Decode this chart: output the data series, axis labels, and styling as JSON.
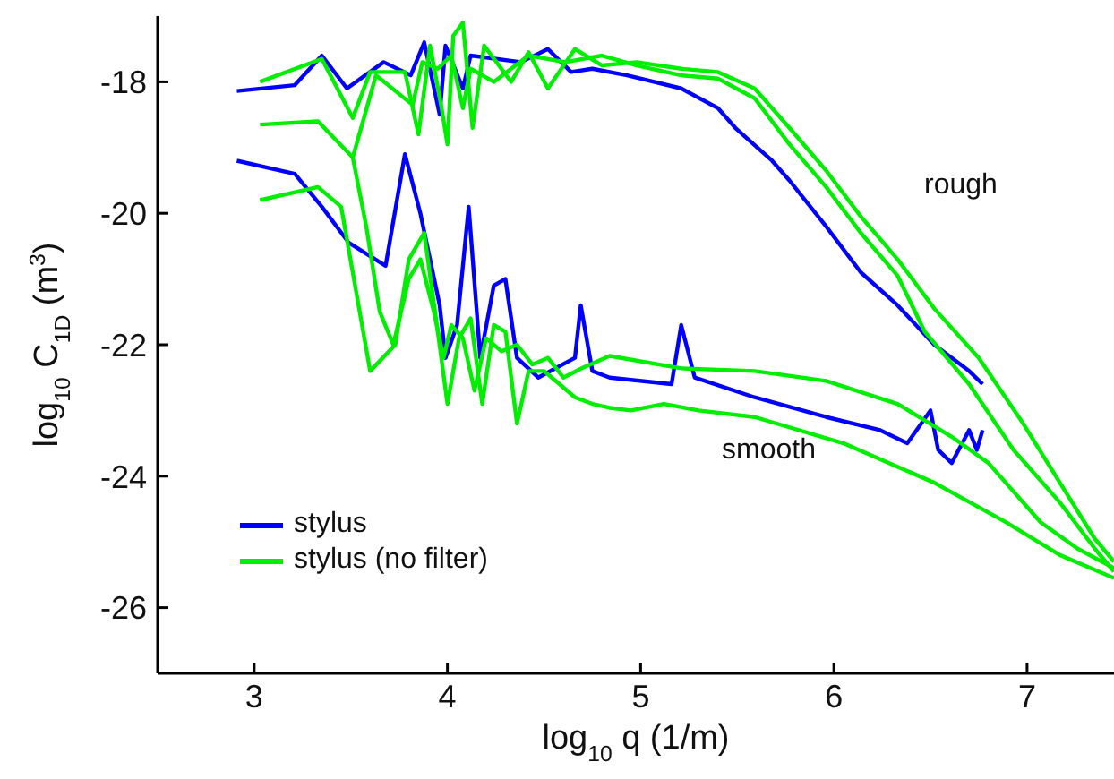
{
  "chart_data": {
    "type": "line",
    "xlabel": "log$_{10}$ q  (1/m)",
    "ylabel": "log$_{10}$ C$_{1D}$  (m$^{3}$)",
    "xlim": [
      2.5,
      7.45
    ],
    "xticks": [
      3,
      4,
      5,
      6,
      7
    ],
    "ylim": [
      -27,
      -17
    ],
    "yticks": [
      -26,
      -24,
      -22,
      -20,
      -18
    ],
    "legend": "bottom left",
    "grid": false,
    "marker": "none",
    "line_style": "solid",
    "annotations": [
      "rough",
      "smooth"
    ],
    "series": [
      {
        "name": "stylus",
        "color": "#0000ff",
        "x": [
          2.91,
          3.21,
          3.35,
          3.48,
          3.67,
          3.81,
          3.88,
          3.96,
          3.99,
          4.08,
          4.12,
          4.38,
          4.52,
          4.64,
          4.75,
          4.93,
          5.21,
          5.4,
          5.49,
          5.68,
          5.77,
          5.96,
          6.14,
          6.33,
          6.52,
          6.7,
          6.77
        ],
        "values": [
          -18.14,
          -18.05,
          -17.6,
          -18.1,
          -17.7,
          -17.9,
          -17.4,
          -18.5,
          -17.45,
          -18.1,
          -17.6,
          -17.7,
          -17.5,
          -17.85,
          -17.8,
          -17.9,
          -18.1,
          -18.4,
          -18.7,
          -19.2,
          -19.5,
          -20.2,
          -20.9,
          -21.4,
          -22.0,
          -22.4,
          -22.6
        ]
      },
      {
        "color": "#0000ff",
        "x": [
          2.91,
          3.21,
          3.35,
          3.49,
          3.68,
          3.78,
          3.86,
          3.96,
          3.99,
          4.05,
          4.11,
          4.17,
          4.24,
          4.3,
          4.36,
          4.47,
          4.66,
          4.69,
          4.75,
          4.84,
          5.16,
          5.21,
          5.28,
          5.59,
          5.96,
          6.24,
          6.38,
          6.5,
          6.54,
          6.61,
          6.7,
          6.74,
          6.77
        ],
        "values": [
          -19.2,
          -19.4,
          -19.9,
          -20.45,
          -20.8,
          -19.1,
          -20.0,
          -21.4,
          -22.2,
          -21.7,
          -19.9,
          -22.2,
          -21.1,
          -21.0,
          -22.2,
          -22.5,
          -22.2,
          -21.4,
          -22.4,
          -22.5,
          -22.6,
          -21.7,
          -22.5,
          -22.8,
          -23.1,
          -23.3,
          -23.5,
          -23.0,
          -23.6,
          -23.8,
          -23.3,
          -23.6,
          -23.3
        ]
      },
      {
        "name": "stylus (no filter)",
        "color": "#00ee00",
        "x": [
          3.03,
          3.35,
          3.51,
          3.6,
          3.78,
          3.85,
          3.91,
          3.97,
          4.0,
          4.03,
          4.08,
          4.13,
          4.19,
          4.33,
          4.42,
          4.52,
          4.66,
          4.8,
          4.98,
          5.21,
          5.4,
          5.59,
          5.77,
          5.96,
          6.14,
          6.33,
          6.52,
          6.75,
          6.98,
          7.17,
          7.35,
          7.45
        ],
        "values": [
          -18.0,
          -17.65,
          -18.55,
          -17.85,
          -17.85,
          -18.8,
          -17.45,
          -18.4,
          -18.95,
          -17.3,
          -17.1,
          -18.7,
          -17.45,
          -18.0,
          -17.55,
          -18.1,
          -17.5,
          -17.75,
          -17.7,
          -17.8,
          -17.85,
          -18.1,
          -18.7,
          -19.35,
          -20.05,
          -20.7,
          -21.45,
          -22.2,
          -23.2,
          -24.1,
          -24.95,
          -25.3
        ]
      },
      {
        "color": "#00ee00",
        "x": [
          3.51,
          3.63,
          3.82,
          3.87,
          3.95,
          4.02,
          4.08,
          4.12,
          4.24,
          4.42,
          4.61,
          4.8,
          4.98,
          5.21,
          5.4,
          5.59,
          5.77,
          5.96,
          6.14,
          6.33,
          6.47,
          6.7,
          6.93,
          7.17,
          7.35,
          7.45
        ],
        "values": [
          -19.15,
          -17.9,
          -18.35,
          -17.7,
          -17.8,
          -17.6,
          -18.4,
          -17.8,
          -18.0,
          -17.6,
          -17.7,
          -17.6,
          -17.75,
          -17.9,
          -17.95,
          -18.25,
          -18.95,
          -19.6,
          -20.3,
          -20.95,
          -21.8,
          -22.6,
          -23.6,
          -24.4,
          -25.1,
          -25.45
        ]
      },
      {
        "color": "#00ee00",
        "x": [
          3.03,
          3.33,
          3.45,
          3.6,
          3.73,
          3.8,
          3.88,
          3.95,
          4.0,
          4.06,
          4.12,
          4.18,
          4.24,
          4.3,
          4.36,
          4.42,
          4.5,
          4.58,
          4.66,
          4.75,
          4.84,
          4.95,
          5.12,
          5.3,
          5.59,
          6.05,
          6.52,
          6.89,
          7.17,
          7.45
        ],
        "values": [
          -19.8,
          -19.6,
          -19.9,
          -22.4,
          -22.0,
          -20.7,
          -20.3,
          -21.8,
          -22.9,
          -21.9,
          -21.6,
          -22.9,
          -21.7,
          -21.8,
          -23.2,
          -22.4,
          -22.4,
          -22.6,
          -22.8,
          -22.9,
          -22.96,
          -23.0,
          -22.9,
          -23.0,
          -23.1,
          -23.5,
          -24.1,
          -24.7,
          -25.2,
          -25.55
        ]
      },
      {
        "color": "#00ee00",
        "x": [
          3.03,
          3.33,
          3.51,
          3.58,
          3.65,
          3.72,
          3.8,
          3.86,
          3.93,
          3.98,
          4.02,
          4.08,
          4.14,
          4.2,
          4.28,
          4.36,
          4.44,
          4.52,
          4.6,
          4.7,
          4.84,
          5.21,
          5.59,
          5.96,
          6.33,
          6.61,
          6.8,
          7.07,
          7.26,
          7.45
        ],
        "values": [
          -18.65,
          -18.6,
          -19.15,
          -20.2,
          -21.5,
          -22.0,
          -21.0,
          -20.7,
          -21.5,
          -22.2,
          -21.7,
          -21.9,
          -22.7,
          -21.9,
          -22.1,
          -22.0,
          -22.3,
          -22.2,
          -22.5,
          -22.35,
          -22.17,
          -22.36,
          -22.4,
          -22.55,
          -22.9,
          -23.4,
          -23.8,
          -24.7,
          -25.1,
          -25.4
        ]
      }
    ]
  }
}
